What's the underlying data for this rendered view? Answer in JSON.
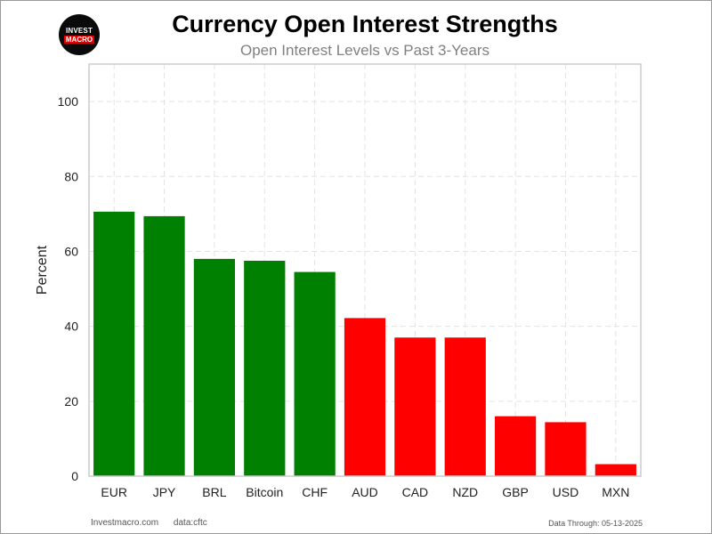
{
  "header": {
    "logo_top": "INVEST",
    "logo_bottom": "MACRO",
    "title": "Currency Open Interest Strengths",
    "subtitle": "Open Interest Levels vs Past 3-Years"
  },
  "footer": {
    "site": "Investmacro.com",
    "source": "data:cftc",
    "date": "Data Through: 05-13-2025"
  },
  "colors": {
    "positive": "#008000",
    "negative": "#ff0000",
    "grid": "#e3e3e3",
    "axis": "#cccccc"
  },
  "chart_data": {
    "type": "bar",
    "title": "Currency Open Interest Strengths",
    "subtitle": "Open Interest Levels vs Past 3-Years",
    "xlabel": "",
    "ylabel": "Percent",
    "ylim": [
      0,
      110
    ],
    "yticks": [
      0,
      20,
      40,
      60,
      80,
      100
    ],
    "grid": true,
    "categories": [
      "EUR",
      "JPY",
      "BRL",
      "Bitcoin",
      "CHF",
      "AUD",
      "CAD",
      "NZD",
      "GBP",
      "USD",
      "MXN"
    ],
    "values": [
      70.6,
      69.4,
      58.0,
      57.5,
      54.5,
      42.2,
      37.0,
      37.0,
      16.0,
      14.4,
      3.2
    ],
    "bar_colors": [
      "#008000",
      "#008000",
      "#008000",
      "#008000",
      "#008000",
      "#ff0000",
      "#ff0000",
      "#ff0000",
      "#ff0000",
      "#ff0000",
      "#ff0000"
    ]
  }
}
